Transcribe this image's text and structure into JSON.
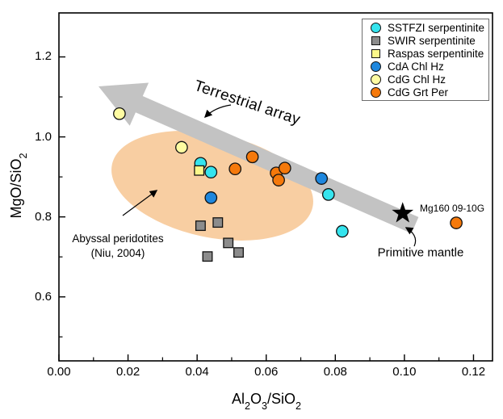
{
  "chart_data": {
    "type": "scatter",
    "xlabel": "Al2O3/SiO2",
    "ylabel": "MgO/SiO2",
    "xlim": [
      0,
      0.1255
    ],
    "ylim": [
      0.44,
      1.31
    ],
    "grid": false,
    "legend_position": "top-right",
    "x_ticks": {
      "values": [
        0,
        0.02,
        0.04,
        0.06,
        0.08,
        0.1,
        0.12
      ],
      "labels": [
        "0.00",
        "0.02",
        "0.04",
        "0.06",
        "0.08",
        "0.10",
        "0.12"
      ],
      "minor": [
        0.01,
        0.03,
        0.05,
        0.07,
        0.09,
        0.11
      ]
    },
    "y_ticks": {
      "values": [
        0.6,
        0.8,
        1.0,
        1.2
      ],
      "labels": [
        "0.6",
        "0.8",
        "1.0",
        "1.2"
      ],
      "minor": [
        0.5,
        0.7,
        0.9,
        1.1
      ]
    },
    "series": [
      {
        "name": "SSTFZI serpentinite",
        "marker": "circle",
        "color": "#35E4EE",
        "points": [
          [
            0.041,
            0.934
          ],
          [
            0.044,
            0.912
          ],
          [
            0.078,
            0.856
          ],
          [
            0.082,
            0.764
          ]
        ]
      },
      {
        "name": "SWIR serpentinite",
        "marker": "square",
        "color": "#8C8C8C",
        "points": [
          [
            0.041,
            0.778
          ],
          [
            0.046,
            0.786
          ],
          [
            0.049,
            0.735
          ],
          [
            0.052,
            0.711
          ],
          [
            0.043,
            0.701
          ]
        ]
      },
      {
        "name": "Raspas serpentinite",
        "marker": "square",
        "color": "#FBF88A",
        "points": [
          [
            0.0406,
            0.916
          ]
        ]
      },
      {
        "name": "CdA Chl Hz",
        "marker": "circle",
        "color": "#1E87DE",
        "points": [
          [
            0.044,
            0.848
          ],
          [
            0.076,
            0.896
          ]
        ]
      },
      {
        "name": "CdG Chl Hz",
        "marker": "circle",
        "color": "#FFFCA2",
        "points": [
          [
            0.0175,
            1.058
          ],
          [
            0.0355,
            0.974
          ]
        ]
      },
      {
        "name": "CdG Grt Per",
        "marker": "circle",
        "color": "#F5790B",
        "points": [
          [
            0.051,
            0.92
          ],
          [
            0.056,
            0.95
          ],
          [
            0.0629,
            0.91
          ],
          [
            0.0654,
            0.922
          ],
          [
            0.0636,
            0.892
          ],
          [
            0.115,
            0.785
          ]
        ]
      }
    ],
    "reference_point": {
      "label": "Primitive mantle",
      "marker": "star",
      "color": "#000000",
      "x": 0.0995,
      "y": 0.809
    },
    "annotations": {
      "terrestrial_array": "Terrestrial array",
      "abyssal_line1": "Abyssal peridotites",
      "abyssal_line2": "(Niu, 2004)",
      "primitive_mantle": "Primitive mantle",
      "sample_label": "Mg160 09-10G"
    },
    "shading": {
      "abyssal_ellipse_color": "#F8CEA2",
      "terrestrial_band_color": "#C3C3C3"
    }
  },
  "legend": {
    "items": [
      {
        "label": "SSTFZI serpentinite",
        "marker": "circle",
        "color": "#35E4EE"
      },
      {
        "label": "SWIR serpentinite",
        "marker": "square",
        "color": "#8C8C8C"
      },
      {
        "label": "Raspas serpentinite",
        "marker": "square",
        "color": "#FBF88A"
      },
      {
        "label": "CdA Chl Hz",
        "marker": "circle",
        "color": "#1E87DE"
      },
      {
        "label": "CdG Chl Hz",
        "marker": "circle",
        "color": "#FFFCA2"
      },
      {
        "label": "CdG Grt Per",
        "marker": "circle",
        "color": "#F5790B"
      }
    ]
  }
}
